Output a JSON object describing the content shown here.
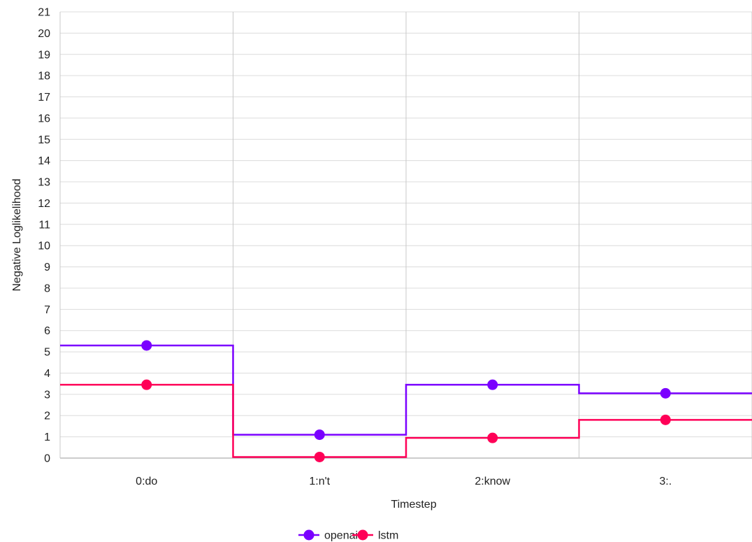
{
  "chart_data": {
    "type": "line",
    "step": true,
    "categories": [
      "0:do",
      "1:n't",
      "2:know",
      "3:."
    ],
    "series": [
      {
        "name": "openai",
        "color": "#7a00ff",
        "values": [
          5.3,
          1.1,
          3.45,
          3.05
        ]
      },
      {
        "name": "lstm",
        "color": "#ff0057",
        "values": [
          3.45,
          0.05,
          0.95,
          1.8
        ]
      }
    ],
    "xlabel": "Timestep",
    "ylabel": "Negative Loglikelihood",
    "ylim": [
      0,
      21
    ],
    "yticks": [
      0,
      1,
      2,
      3,
      4,
      5,
      6,
      7,
      8,
      9,
      10,
      11,
      12,
      13,
      14,
      15,
      16,
      17,
      18,
      19,
      20,
      21
    ],
    "grid": true,
    "legend": "bottom-center"
  }
}
